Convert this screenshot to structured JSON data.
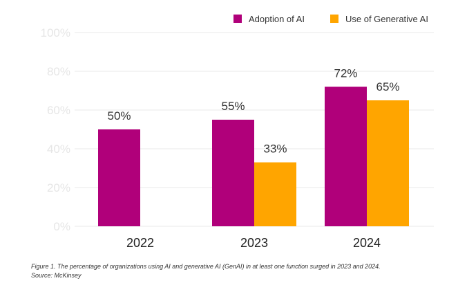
{
  "chart_data": {
    "type": "bar",
    "categories": [
      "2022",
      "2023",
      "2024"
    ],
    "series": [
      {
        "name": "Adoption of AI",
        "color": "#b0007a",
        "values": [
          50,
          55,
          72
        ],
        "labels": [
          "50%",
          "55%",
          "72%"
        ]
      },
      {
        "name": "Use of Generative AI",
        "color": "#ffa500",
        "values": [
          null,
          33,
          65
        ],
        "labels": [
          "",
          "33%",
          "65%"
        ]
      }
    ],
    "ylim": [
      0,
      100
    ],
    "yticks": [
      0,
      20,
      40,
      60,
      80,
      100
    ],
    "ytick_labels": [
      "0%",
      "20%",
      "40%",
      "60%",
      "80%",
      "100%"
    ],
    "grid": true,
    "legend_position": "top-right"
  },
  "caption": {
    "line1": "Figure 1. The percentage of organizations using AI and generative AI (GenAI) in at least one function surged in 2023 and 2024.",
    "line2": "Source: McKinsey"
  }
}
